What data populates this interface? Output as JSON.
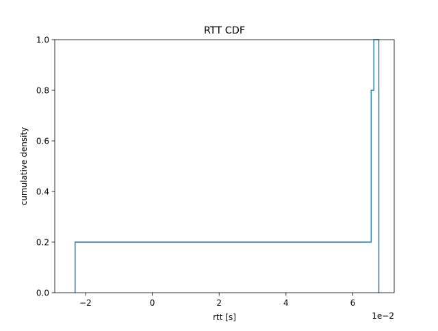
{
  "chart_data": {
    "type": "line",
    "drawstyle": "steps-post",
    "title": "RTT CDF",
    "xlabel": "rtt [s]",
    "ylabel": "cumulative density",
    "x_offset_label": "1e−2",
    "xlim": [
      -0.0292,
      0.0724
    ],
    "ylim": [
      0,
      1.0
    ],
    "x_ticks": [
      -0.02,
      0,
      0.02,
      0.04,
      0.06
    ],
    "x_tick_labels": [
      "−2",
      "0",
      "2",
      "4",
      "6"
    ],
    "y_ticks": [
      0,
      0.2,
      0.4,
      0.6,
      0.8,
      1.0
    ],
    "y_tick_labels": [
      "0.0",
      "0.2",
      "0.4",
      "0.6",
      "0.8",
      "1.0"
    ],
    "grid": false,
    "series": [
      {
        "color": "#1f77b4",
        "x": [
          -0.0231,
          -0.0231,
          0.0655,
          0.0655,
          0.0663,
          0.0663,
          0.0678,
          0.0678
        ],
        "y": [
          0,
          0.2,
          0.2,
          0.8,
          0.8,
          1.0,
          1.0,
          0
        ]
      }
    ]
  }
}
